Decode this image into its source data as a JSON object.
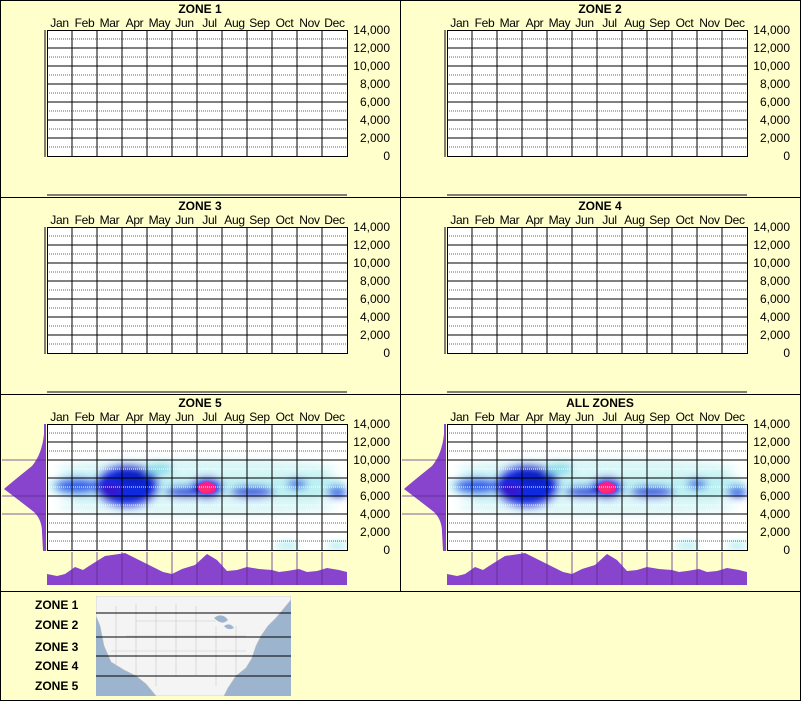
{
  "chart_data": [
    {
      "type": "heatmap",
      "title": "ZONE 1",
      "categories": [
        "Jan",
        "Feb",
        "Mar",
        "Apr",
        "May",
        "Jun",
        "Jul",
        "Aug",
        "Sep",
        "Oct",
        "Nov",
        "Dec"
      ],
      "ylim": [
        0,
        14000
      ],
      "yticks": [
        "14,000",
        "12,000",
        "10,000",
        "8,000",
        "6,000",
        "4,000",
        "2,000",
        "0"
      ],
      "data": "empty"
    },
    {
      "type": "heatmap",
      "title": "ZONE 2",
      "categories": [
        "Jan",
        "Feb",
        "Mar",
        "Apr",
        "May",
        "Jun",
        "Jul",
        "Aug",
        "Sep",
        "Oct",
        "Nov",
        "Dec"
      ],
      "ylim": [
        0,
        14000
      ],
      "yticks": [
        "14,000",
        "12,000",
        "10,000",
        "8,000",
        "6,000",
        "4,000",
        "2,000",
        "0"
      ],
      "data": "empty"
    },
    {
      "type": "heatmap",
      "title": "ZONE 3",
      "categories": [
        "Jan",
        "Feb",
        "Mar",
        "Apr",
        "May",
        "Jun",
        "Jul",
        "Aug",
        "Sep",
        "Oct",
        "Nov",
        "Dec"
      ],
      "ylim": [
        0,
        14000
      ],
      "yticks": [
        "14,000",
        "12,000",
        "10,000",
        "8,000",
        "6,000",
        "4,000",
        "2,000",
        "0"
      ],
      "data": "empty"
    },
    {
      "type": "heatmap",
      "title": "ZONE 4",
      "categories": [
        "Jan",
        "Feb",
        "Mar",
        "Apr",
        "May",
        "Jun",
        "Jul",
        "Aug",
        "Sep",
        "Oct",
        "Nov",
        "Dec"
      ],
      "ylim": [
        0,
        14000
      ],
      "yticks": [
        "14,000",
        "12,000",
        "10,000",
        "8,000",
        "6,000",
        "4,000",
        "2,000",
        "0"
      ],
      "data": "empty"
    },
    {
      "type": "heatmap",
      "title": "ZONE 5",
      "categories": [
        "Jan",
        "Feb",
        "Mar",
        "Apr",
        "May",
        "Jun",
        "Jul",
        "Aug",
        "Sep",
        "Oct",
        "Nov",
        "Dec"
      ],
      "ylim": [
        0,
        14000
      ],
      "yticks": [
        "14,000",
        "12,000",
        "10,000",
        "8,000",
        "6,000",
        "4,000",
        "2,000",
        "0"
      ],
      "hotspots": [
        {
          "month": "Jul",
          "elevation": 6500,
          "intensity": "max"
        },
        {
          "month": "Mar",
          "elevation": 6000,
          "intensity": "high"
        },
        {
          "month": "Apr",
          "elevation": 7800,
          "intensity": "high"
        }
      ],
      "month_profile": [
        0.15,
        0.35,
        0.85,
        0.9,
        0.5,
        0.25,
        0.95,
        0.3,
        0.3,
        0.2,
        0.2,
        0.3
      ],
      "elevation_profile_peak": 6000
    },
    {
      "type": "heatmap",
      "title": "ALL ZONES",
      "categories": [
        "Jan",
        "Feb",
        "Mar",
        "Apr",
        "May",
        "Jun",
        "Jul",
        "Aug",
        "Sep",
        "Oct",
        "Nov",
        "Dec"
      ],
      "ylim": [
        0,
        14000
      ],
      "yticks": [
        "14,000",
        "12,000",
        "10,000",
        "8,000",
        "6,000",
        "4,000",
        "2,000",
        "0"
      ],
      "hotspots": [
        {
          "month": "Jul",
          "elevation": 6500,
          "intensity": "max"
        },
        {
          "month": "Mar",
          "elevation": 6000,
          "intensity": "high"
        },
        {
          "month": "Apr",
          "elevation": 7800,
          "intensity": "high"
        }
      ],
      "month_profile": [
        0.15,
        0.35,
        0.85,
        0.9,
        0.5,
        0.25,
        0.95,
        0.3,
        0.3,
        0.2,
        0.2,
        0.3
      ],
      "elevation_profile_peak": 6000
    }
  ],
  "panels": [
    {
      "title": "ZONE 1"
    },
    {
      "title": "ZONE 2"
    },
    {
      "title": "ZONE 3"
    },
    {
      "title": "ZONE 4"
    },
    {
      "title": "ZONE 5"
    },
    {
      "title": "ALL ZONES"
    }
  ],
  "months": [
    "Jan",
    "Feb",
    "Mar",
    "Apr",
    "May",
    "Jun",
    "Jul",
    "Aug",
    "Sep",
    "Oct",
    "Nov",
    "Dec"
  ],
  "yticks": [
    "14,000",
    "12,000",
    "10,000",
    "8,000",
    "6,000",
    "4,000",
    "2,000",
    "0"
  ],
  "legend": {
    "zones": [
      "ZONE 1",
      "ZONE 2",
      "ZONE 3",
      "ZONE 4",
      "ZONE 5"
    ]
  },
  "colors": {
    "background": "#FFFFCC",
    "profile": "#8844CC",
    "heat_low": "#aeeef2",
    "heat_mid": "#0022dd",
    "heat_high": "#ff1493"
  }
}
